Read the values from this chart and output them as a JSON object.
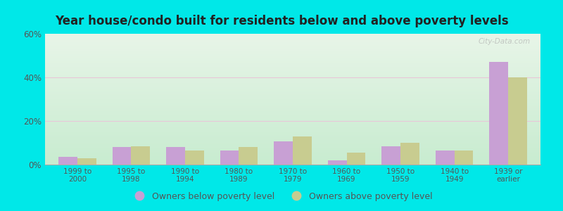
{
  "title": "Year house/condo built for residents below and above poverty levels",
  "categories": [
    "1999 to\n2000",
    "1995 to\n1998",
    "1990 to\n1994",
    "1980 to\n1989",
    "1970 to\n1979",
    "1960 to\n1969",
    "1950 to\n1959",
    "1940 to\n1949",
    "1939 or\nearlier"
  ],
  "below_poverty": [
    3.5,
    8.0,
    8.0,
    6.5,
    10.5,
    2.0,
    8.5,
    6.5,
    47.0
  ],
  "above_poverty": [
    3.0,
    8.5,
    6.5,
    8.0,
    13.0,
    5.5,
    10.0,
    6.5,
    40.0
  ],
  "below_color": "#c8a0d4",
  "above_color": "#c8cc90",
  "ylim": [
    0,
    60
  ],
  "yticks": [
    0,
    20,
    40,
    60
  ],
  "ytick_labels": [
    "0%",
    "20%",
    "40%",
    "60%"
  ],
  "bg_color_top": "#e8f5e8",
  "bg_color_bottom": "#c8ecd0",
  "outer_bg": "#00e8e8",
  "bar_width": 0.35,
  "legend_below_label": "Owners below poverty level",
  "legend_above_label": "Owners above poverty level",
  "watermark": "City-Data.com",
  "grid_color": "#ddeecc",
  "spine_color": "#ccddbb"
}
